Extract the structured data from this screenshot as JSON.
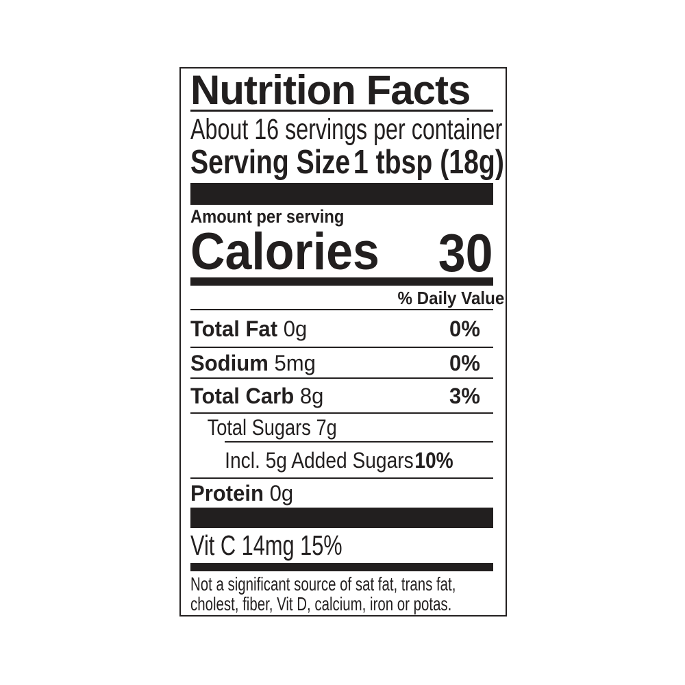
{
  "label": {
    "title": "Nutrition Facts",
    "servings_per_container": "About 16 servings per container",
    "serving_size_label": "Serving Size",
    "serving_size_value": "1 tbsp (18g)",
    "amount_per_serving": "Amount per serving",
    "calories_label": "Calories",
    "calories_value": "30",
    "daily_value_header": "% Daily Value",
    "nutrients": [
      {
        "name": "Total Fat",
        "amount": "0g",
        "dv": "0%"
      },
      {
        "name": "Sodium",
        "amount": "5mg",
        "dv": "0%"
      },
      {
        "name": "Total Carb",
        "amount": "8g",
        "dv": "3%"
      },
      {
        "name": "Total Sugars",
        "amount": "7g",
        "dv": ""
      },
      {
        "name": "Incl. 5g Added Sugars",
        "amount": "",
        "dv": "10%"
      },
      {
        "name": "Protein",
        "amount": "0g",
        "dv": ""
      }
    ],
    "vitamin_line": "Vit C 14mg 15%",
    "footnote_line1": "Not a significant source of sat fat, trans fat,",
    "footnote_line2": "cholest, fiber, Vit D, calcium, iron or potas.",
    "colors": {
      "ink": "#221f1f",
      "background": "#ffffff"
    }
  }
}
